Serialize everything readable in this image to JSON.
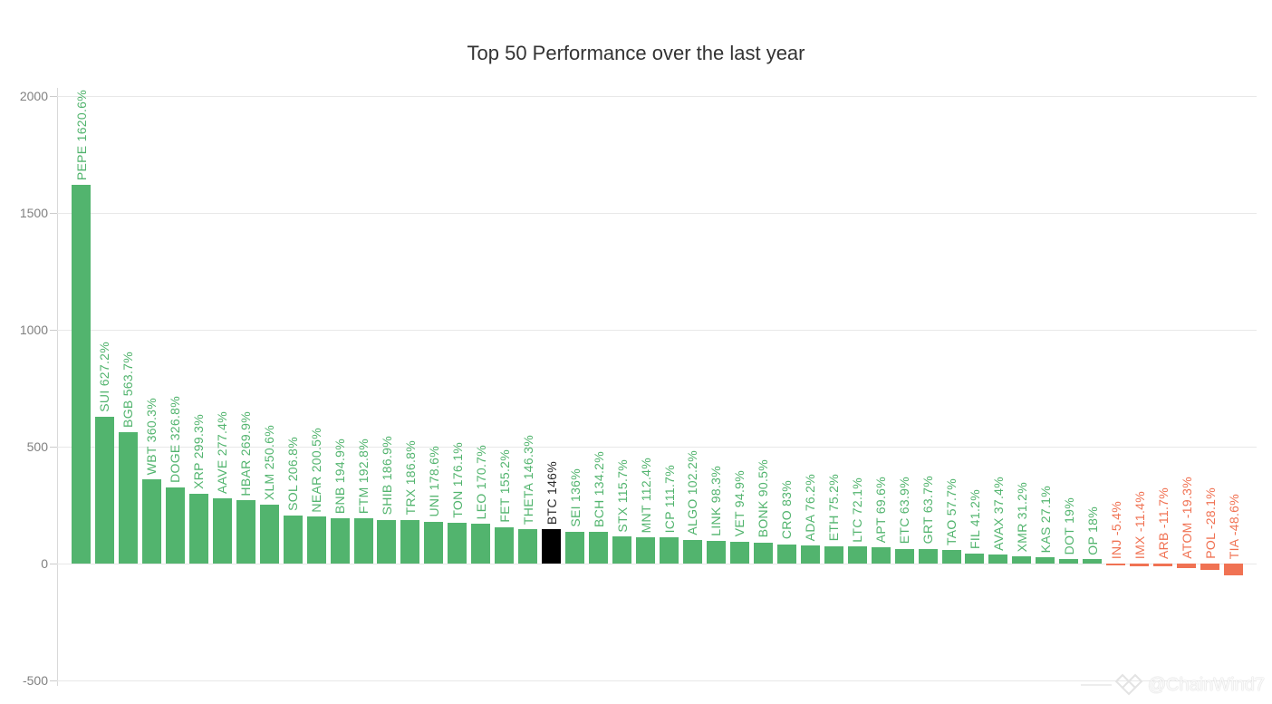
{
  "title": "Top 50 Performance over the last year",
  "watermark": {
    "handle": "@ChainWind7",
    "logo": "overlapping-diamonds"
  },
  "colors": {
    "positive": "#52b46e",
    "negative": "#f07253",
    "btc_bar": "#000000",
    "btc_label": "#2b2b2b",
    "grid": "#e8e8e8",
    "axis_text": "#808080",
    "title_text": "#333333"
  },
  "chart_data": {
    "type": "bar",
    "title": "Top 50 Performance over the last year",
    "xlabel": "",
    "ylabel": "",
    "ylim": [
      -500,
      2000
    ],
    "grid": "horizontal",
    "legend": "none",
    "yticks": [
      2000,
      1500,
      1000,
      500,
      0,
      -500
    ],
    "ytick_labels": [
      "2000",
      "1500",
      "1000",
      "500",
      "0",
      "-500"
    ],
    "bars": [
      {
        "name": "PEPE",
        "value": 1620.6,
        "label": "PEPE 1620.6%"
      },
      {
        "name": "SUI",
        "value": 627.2,
        "label": "SUI 627.2%"
      },
      {
        "name": "BGB",
        "value": 563.7,
        "label": "BGB 563.7%"
      },
      {
        "name": "WBT",
        "value": 360.3,
        "label": "WBT 360.3%"
      },
      {
        "name": "DOGE",
        "value": 326.8,
        "label": "DOGE 326.8%"
      },
      {
        "name": "XRP",
        "value": 299.3,
        "label": "XRP 299.3%"
      },
      {
        "name": "AAVE",
        "value": 277.4,
        "label": "AAVE 277.4%"
      },
      {
        "name": "HBAR",
        "value": 269.9,
        "label": "HBAR 269.9%"
      },
      {
        "name": "XLM",
        "value": 250.6,
        "label": "XLM 250.6%"
      },
      {
        "name": "SOL",
        "value": 206.8,
        "label": "SOL 206.8%"
      },
      {
        "name": "NEAR",
        "value": 200.5,
        "label": "NEAR 200.5%"
      },
      {
        "name": "BNB",
        "value": 194.9,
        "label": "BNB 194.9%"
      },
      {
        "name": "FTM",
        "value": 192.8,
        "label": "FTM 192.8%"
      },
      {
        "name": "SHIB",
        "value": 186.9,
        "label": "SHIB 186.9%"
      },
      {
        "name": "TRX",
        "value": 186.8,
        "label": "TRX 186.8%"
      },
      {
        "name": "UNI",
        "value": 178.6,
        "label": "UNI 178.6%"
      },
      {
        "name": "TON",
        "value": 176.1,
        "label": "TON 176.1%"
      },
      {
        "name": "LEO",
        "value": 170.7,
        "label": "LEO 170.7%"
      },
      {
        "name": "FET",
        "value": 155.2,
        "label": "FET 155.2%"
      },
      {
        "name": "THETA",
        "value": 146.3,
        "label": "THETA 146.3%"
      },
      {
        "name": "BTC",
        "value": 146,
        "label": "BTC 146%"
      },
      {
        "name": "SEI",
        "value": 136,
        "label": "SEI 136%"
      },
      {
        "name": "BCH",
        "value": 134.2,
        "label": "BCH 134.2%"
      },
      {
        "name": "STX",
        "value": 115.7,
        "label": "STX 115.7%"
      },
      {
        "name": "MNT",
        "value": 112.4,
        "label": "MNT 112.4%"
      },
      {
        "name": "ICP",
        "value": 111.7,
        "label": "ICP 111.7%"
      },
      {
        "name": "ALGO",
        "value": 102.2,
        "label": "ALGO 102.2%"
      },
      {
        "name": "LINK",
        "value": 98.3,
        "label": "LINK 98.3%"
      },
      {
        "name": "VET",
        "value": 94.9,
        "label": "VET 94.9%"
      },
      {
        "name": "BONK",
        "value": 90.5,
        "label": "BONK 90.5%"
      },
      {
        "name": "CRO",
        "value": 83,
        "label": "CRO 83%"
      },
      {
        "name": "ADA",
        "value": 76.2,
        "label": "ADA 76.2%"
      },
      {
        "name": "ETH",
        "value": 75.2,
        "label": "ETH 75.2%"
      },
      {
        "name": "LTC",
        "value": 72.1,
        "label": "LTC 72.1%"
      },
      {
        "name": "APT",
        "value": 69.6,
        "label": "APT 69.6%"
      },
      {
        "name": "ETC",
        "value": 63.9,
        "label": "ETC 63.9%"
      },
      {
        "name": "GRT",
        "value": 63.7,
        "label": "GRT 63.7%"
      },
      {
        "name": "TAO",
        "value": 57.7,
        "label": "TAO 57.7%"
      },
      {
        "name": "FIL",
        "value": 41.2,
        "label": "FIL 41.2%"
      },
      {
        "name": "AVAX",
        "value": 37.4,
        "label": "AVAX 37.4%"
      },
      {
        "name": "XMR",
        "value": 31.2,
        "label": "XMR 31.2%"
      },
      {
        "name": "KAS",
        "value": 27.1,
        "label": "KAS 27.1%"
      },
      {
        "name": "DOT",
        "value": 19,
        "label": "DOT 19%"
      },
      {
        "name": "OP",
        "value": 18,
        "label": "OP 18%"
      },
      {
        "name": "INJ",
        "value": -5.4,
        "label": "INJ -5.4%"
      },
      {
        "name": "IMX",
        "value": -11.4,
        "label": "IMX -11.4%"
      },
      {
        "name": "ARB",
        "value": -11.7,
        "label": "ARB -11.7%"
      },
      {
        "name": "ATOM",
        "value": -19.3,
        "label": "ATOM -19.3%"
      },
      {
        "name": "POL",
        "value": -28.1,
        "label": "POL -28.1%"
      },
      {
        "name": "TIA",
        "value": -48.6,
        "label": "TIA -48.6%"
      }
    ]
  }
}
